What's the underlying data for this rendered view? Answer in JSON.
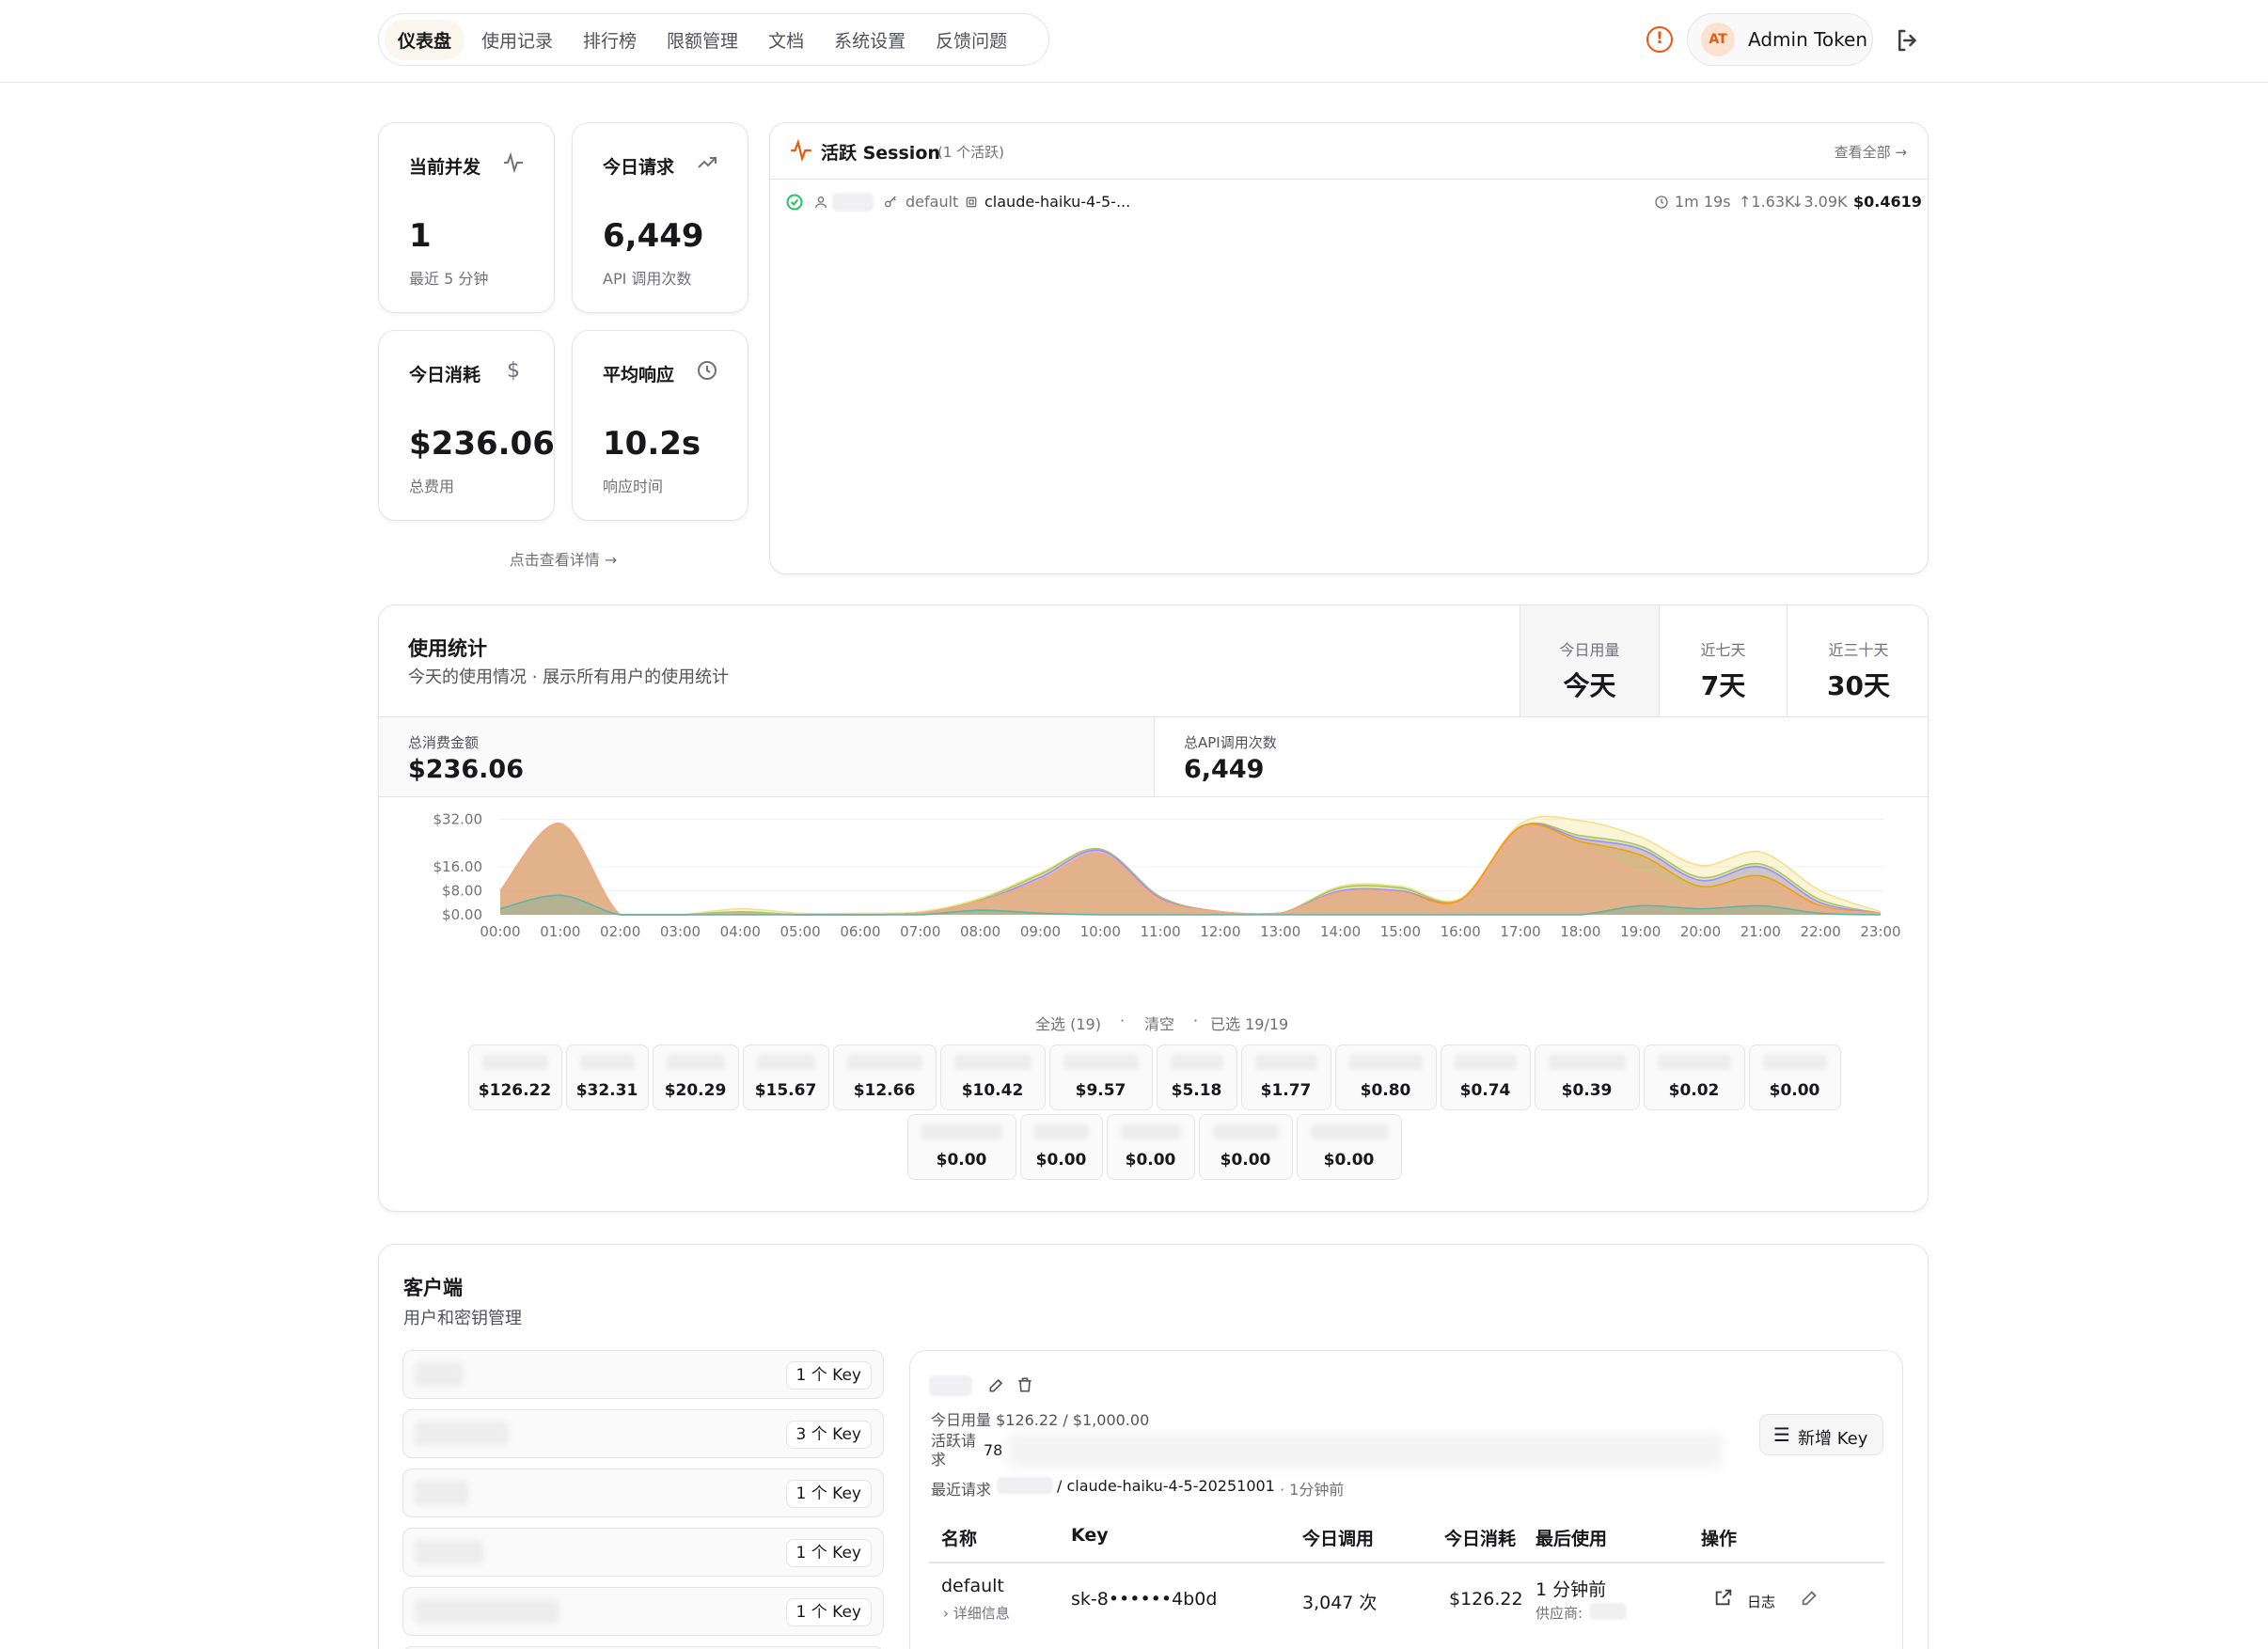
{
  "nav": {
    "items": [
      "仪表盘",
      "使用记录",
      "排行榜",
      "限额管理",
      "文档",
      "系统设置",
      "反馈问题"
    ],
    "active": "仪表盘"
  },
  "user": {
    "initials": "AT",
    "name": "Admin Token"
  },
  "stats": {
    "concurrent": {
      "title": "当前并发",
      "value": "1",
      "sub": "最近 5 分钟"
    },
    "requests": {
      "title": "今日请求",
      "value": "6,449",
      "sub": "API 调用次数"
    },
    "cost": {
      "title": "今日消耗",
      "value": "$236.06",
      "sub": "总费用"
    },
    "latency": {
      "title": "平均响应",
      "value": "10.2s",
      "sub": "响应时间"
    },
    "details_link": "点击查看详情 →"
  },
  "sessions": {
    "title": "活跃 Session",
    "count": "(1 个活跃)",
    "view_all": "查看全部 →",
    "row": {
      "key": "default",
      "model": "claude-haiku-4-5-...",
      "duration": "1m 19s",
      "tokens_in": "↑1.63K",
      "tokens_out": "↓3.09K",
      "cost": "$0.4619"
    }
  },
  "usage": {
    "title": "使用统计",
    "subtitle": "今天的使用情况 · 展示所有用户的使用统计",
    "tabs": [
      {
        "sub": "今日用量",
        "main": "今天"
      },
      {
        "sub": "近七天",
        "main": "7天"
      },
      {
        "sub": "近三十天",
        "main": "30天"
      }
    ],
    "total_cost_label": "总消费金额",
    "total_cost": "$236.06",
    "total_calls_label": "总API调用次数",
    "total_calls": "6,449",
    "select_all": "全选 (19)",
    "clear": "清空",
    "selected": "已选 19/19",
    "legend_values_row1": [
      "$126.22",
      "$32.31",
      "$20.29",
      "$15.67",
      "$12.66",
      "$10.42",
      "$9.57",
      "$5.18",
      "$1.77",
      "$0.80",
      "$0.74",
      "$0.39",
      "$0.02",
      "$0.00"
    ],
    "legend_values_row2": [
      "$0.00",
      "$0.00",
      "$0.00",
      "$0.00",
      "$0.00"
    ]
  },
  "chart_data": {
    "type": "area",
    "x": [
      "00:00",
      "01:00",
      "02:00",
      "03:00",
      "04:00",
      "05:00",
      "06:00",
      "07:00",
      "08:00",
      "09:00",
      "10:00",
      "11:00",
      "12:00",
      "13:00",
      "14:00",
      "15:00",
      "16:00",
      "17:00",
      "18:00",
      "19:00",
      "20:00",
      "21:00",
      "22:00",
      "23:00"
    ],
    "yticks": [
      "$0.00",
      "$8.00",
      "$16.00",
      "$32.00"
    ],
    "ytick_values": [
      0,
      8,
      16,
      32
    ],
    "ylim": [
      0,
      34
    ],
    "stacked": true,
    "series": [
      {
        "color": "#5fb3a3",
        "values": [
          2,
          6.5,
          0,
          0,
          0,
          0,
          0,
          0,
          1.5,
          0.5,
          0,
          0,
          0,
          0,
          0,
          0,
          0,
          0,
          0,
          3,
          2,
          3,
          0.5,
          0
        ]
      },
      {
        "color": "#f4a98e",
        "values": [
          6,
          24,
          0,
          0,
          0.5,
          0,
          0,
          0.5,
          3,
          11,
          20.5,
          5,
          1,
          0.5,
          7.5,
          7.5,
          4,
          28.5,
          22.5,
          11,
          5.5,
          8,
          2,
          0.5
        ]
      },
      {
        "color": "#f59e0b",
        "values": [
          0,
          0,
          0,
          0,
          0,
          0,
          0,
          0,
          0,
          0,
          0,
          0,
          0,
          0,
          0,
          0,
          1,
          1,
          2,
          6,
          2,
          2,
          0.5,
          0
        ]
      },
      {
        "color": "#a78bfa",
        "values": [
          0,
          0,
          0,
          0,
          0,
          0,
          0,
          0,
          0,
          1,
          1,
          0.5,
          0,
          0,
          0.5,
          0.5,
          0,
          0,
          1,
          2,
          2,
          3,
          1,
          0
        ]
      },
      {
        "color": "#a3c86a",
        "values": [
          0,
          0,
          0,
          0,
          0.5,
          0,
          0,
          0,
          0.5,
          1,
          0.5,
          0.5,
          0,
          0,
          1,
          1,
          0,
          0,
          1,
          1,
          1,
          1,
          1,
          0
        ]
      },
      {
        "color": "#f5e08a",
        "values": [
          0,
          0,
          0,
          0,
          1,
          0.5,
          0.5,
          0.5,
          0.5,
          0.5,
          0,
          0,
          0,
          0,
          0.5,
          0.5,
          0.5,
          1,
          5,
          3,
          4,
          4,
          3,
          0.5
        ]
      }
    ]
  },
  "clients": {
    "title": "客户端",
    "subtitle": "用户和密钥管理",
    "list_badges": [
      "1 个 Key",
      "3 个 Key",
      "1 个 Key",
      "1 个 Key",
      "1 个 Key"
    ],
    "detail": {
      "usage": "今日用量 $126.22 / $1,000.00",
      "active_label": "活跃请求",
      "active_value": "78",
      "recent_label": "最近请求",
      "recent_value": "/ claude-haiku-4-5-20251001",
      "recent_time": "· 1分钟前",
      "new_key": "新增 Key",
      "headers": [
        "名称",
        "Key",
        "今日调用",
        "今日消耗",
        "最后使用",
        "操作"
      ],
      "row": {
        "name": "default",
        "details": "详细信息",
        "key": "sk-8••••••4b0d",
        "calls": "3,047 次",
        "cost": "$126.22",
        "last_used": "1 分钟前",
        "provider": "供应商:",
        "log": "日志"
      }
    }
  }
}
